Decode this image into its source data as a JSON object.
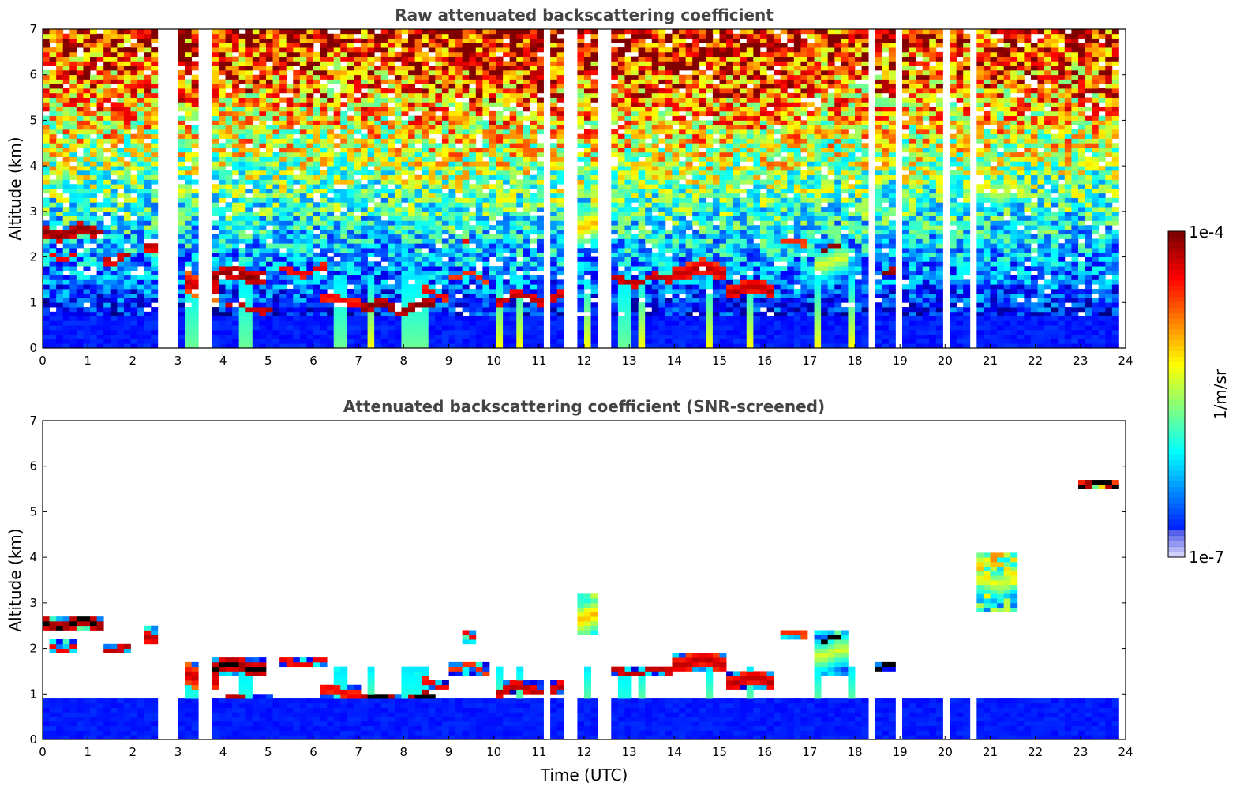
{
  "chart_data": [
    {
      "type": "heatmap",
      "title": "Raw attenuated backscattering coefficient",
      "xlabel": "",
      "ylabel": "Altitude (km)",
      "xlim": [
        0,
        24
      ],
      "ylim": [
        0,
        7
      ],
      "x_ticks": [
        "0",
        "1",
        "2",
        "3",
        "4",
        "5",
        "6",
        "7",
        "8",
        "9",
        "10",
        "11",
        "12",
        "13",
        "14",
        "15",
        "16",
        "17",
        "18",
        "19",
        "20",
        "21",
        "22",
        "23",
        "24"
      ],
      "y_ticks": [
        "0",
        "1",
        "2",
        "3",
        "4",
        "5",
        "6",
        "7"
      ],
      "data_end_time": 23.8,
      "data_gaps_utc": [
        2.6,
        2.75,
        2.9,
        3.3,
        3.5,
        3.7,
        3.9,
        11.2,
        11.65,
        11.8,
        12.35,
        12.55,
        18.4,
        19.0,
        20.05,
        20.6,
        21.6
      ],
      "layers": [
        {
          "t0": 0.0,
          "t1": 1.3,
          "alt": 2.55,
          "thick": 0.25,
          "level": 1.0
        },
        {
          "t0": 0.2,
          "t1": 0.8,
          "alt": 2.05,
          "thick": 0.12,
          "level": 0.9
        },
        {
          "t0": 1.4,
          "t1": 1.9,
          "alt": 2.0,
          "thick": 0.18,
          "level": 0.95
        },
        {
          "t0": 2.2,
          "t1": 2.8,
          "alt": 2.3,
          "thick": 0.25,
          "level": 0.95
        },
        {
          "t0": 3.1,
          "t1": 3.9,
          "alt": 1.35,
          "thick": 0.5,
          "level": 0.95
        },
        {
          "t0": 3.8,
          "t1": 4.9,
          "alt": 1.6,
          "thick": 0.3,
          "level": 1.0
        },
        {
          "t0": 4.1,
          "t1": 5.1,
          "alt": 0.88,
          "thick": 0.12,
          "level": 0.95
        },
        {
          "t0": 5.2,
          "t1": 6.3,
          "alt": 1.7,
          "thick": 0.15,
          "level": 0.9
        },
        {
          "t0": 6.2,
          "t1": 7.1,
          "alt": 1.05,
          "thick": 0.2,
          "level": 0.9
        },
        {
          "t0": 7.1,
          "t1": 8.7,
          "alt": 0.9,
          "thick": 0.2,
          "level": 1.0
        },
        {
          "t0": 8.4,
          "t1": 9.0,
          "alt": 1.2,
          "thick": 0.15,
          "level": 0.9
        },
        {
          "t0": 9.0,
          "t1": 9.9,
          "alt": 1.55,
          "thick": 0.1,
          "level": 0.85
        },
        {
          "t0": 9.3,
          "t1": 9.6,
          "alt": 2.25,
          "thick": 0.1,
          "level": 0.9
        },
        {
          "t0": 10.0,
          "t1": 11.7,
          "alt": 1.1,
          "thick": 0.2,
          "level": 0.95
        },
        {
          "t0": 11.8,
          "t1": 12.3,
          "alt": 2.7,
          "thick": 0.8,
          "level": 0.7
        },
        {
          "t0": 12.4,
          "t1": 13.9,
          "alt": 1.5,
          "thick": 0.15,
          "level": 0.95
        },
        {
          "t0": 14.0,
          "t1": 15.2,
          "alt": 1.7,
          "thick": 0.35,
          "level": 0.95
        },
        {
          "t0": 15.2,
          "t1": 16.2,
          "alt": 1.3,
          "thick": 0.3,
          "level": 0.95
        },
        {
          "t0": 16.3,
          "t1": 16.9,
          "alt": 2.3,
          "thick": 0.15,
          "level": 0.85
        },
        {
          "t0": 17.1,
          "t1": 17.9,
          "alt": 1.9,
          "thick": 0.8,
          "level": 0.6
        },
        {
          "t0": 17.3,
          "t1": 17.7,
          "alt": 2.2,
          "thick": 0.12,
          "level": 1.0
        },
        {
          "t0": 18.3,
          "t1": 19.0,
          "alt": 1.6,
          "thick": 0.15,
          "level": 1.0
        },
        {
          "t0": 20.7,
          "t1": 21.6,
          "alt": 3.5,
          "thick": 1.2,
          "level": 0.6
        },
        {
          "t0": 23.0,
          "t1": 23.8,
          "alt": 5.6,
          "thick": 0.15,
          "level": 1.0
        }
      ],
      "fall_streaks_utc": [
        3.3,
        4.5,
        6.6,
        7.3,
        8.1,
        8.4,
        10.1,
        10.6,
        12.1,
        12.9,
        13.3,
        14.8,
        15.7,
        17.2,
        17.9
      ]
    },
    {
      "type": "heatmap",
      "title": "Attenuated backscattering coefficient (SNR-screened)",
      "xlabel": "Time (UTC)",
      "ylabel": "Altitude (km)",
      "xlim": [
        0,
        24
      ],
      "ylim": [
        0,
        7
      ],
      "x_ticks": [
        "0",
        "1",
        "2",
        "3",
        "4",
        "5",
        "6",
        "7",
        "8",
        "9",
        "10",
        "11",
        "12",
        "13",
        "14",
        "15",
        "16",
        "17",
        "18",
        "19",
        "20",
        "21",
        "22",
        "23",
        "24"
      ],
      "y_ticks": [
        "0",
        "1",
        "2",
        "3",
        "4",
        "5",
        "6",
        "7"
      ],
      "screened_boundary_layer_top_km": 0.95,
      "clipped_above_scale_color": "#000000"
    }
  ],
  "colorbar": {
    "label": "1/m/sr",
    "max_label": "1e-4",
    "min_label": "1e-7",
    "scale": "log",
    "colormap": "jet"
  }
}
